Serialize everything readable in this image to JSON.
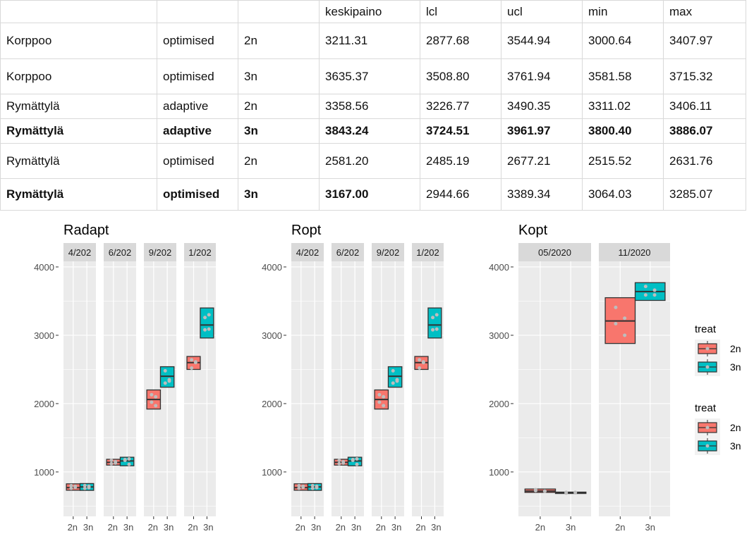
{
  "table": {
    "headers": [
      "",
      "",
      "",
      "keskipaino",
      "lcl",
      "ucl",
      "min",
      "max"
    ],
    "rows": [
      {
        "bold": false,
        "cells": [
          "Korppoo",
          "optimised",
          "2n",
          "3211.31",
          "2877.68",
          "3544.94",
          "3000.64",
          "3407.97"
        ]
      },
      {
        "bold": false,
        "cells": [
          "Korppoo",
          "optimised",
          "3n",
          "3635.37",
          "3508.80",
          "3761.94",
          "3581.58",
          "3715.32"
        ]
      },
      {
        "bold": false,
        "cells": [
          "Rymättylä",
          "adaptive",
          "2n",
          "3358.56",
          "3226.77",
          "3490.35",
          "3311.02",
          "3406.11"
        ]
      },
      {
        "bold": true,
        "cells": [
          "Rymättylä",
          "adaptive",
          "3n",
          "3843.24",
          "3724.51",
          "3961.97",
          "3800.40",
          "3886.07"
        ]
      },
      {
        "bold": false,
        "cells": [
          "Rymättylä",
          "optimised",
          "2n",
          "2581.20",
          "2485.19",
          "2677.21",
          "2515.52",
          "2631.76"
        ]
      },
      {
        "bold": "partial",
        "cells": [
          "Rymättylä",
          "optimised",
          "3n",
          "3167.00",
          "2944.66",
          "3389.34",
          "3064.03",
          "3285.07"
        ]
      }
    ]
  },
  "colors": {
    "2n": "#F8766D",
    "3n": "#00BFC4",
    "panel": "#EBEBEB",
    "strip": "#D9D9D9"
  },
  "chart_data": [
    {
      "type": "box",
      "title": "Radapt",
      "ylim": [
        350,
        4082
      ],
      "yticks": [
        1000,
        2000,
        3000,
        4000
      ],
      "facets": [
        {
          "label": "4/202",
          "boxes": [
            {
              "group": "2n",
              "q1": 732,
              "median": 770,
              "q3": 826,
              "points": [
                760,
                790,
                800,
                775
              ]
            },
            {
              "group": "3n",
              "q1": 730,
              "median": 780,
              "q3": 830,
              "points": [
                800,
                770,
                760,
                790
              ]
            }
          ]
        },
        {
          "label": "6/202",
          "boxes": [
            {
              "group": "2n",
              "q1": 1100,
              "median": 1140,
              "q3": 1185,
              "points": [
                1120,
                1150,
                1170,
                1130
              ]
            },
            {
              "group": "3n",
              "q1": 1090,
              "median": 1160,
              "q3": 1215,
              "points": [
                1180,
                1110,
                1170,
                1190
              ]
            }
          ]
        },
        {
          "label": "9/202",
          "boxes": [
            {
              "group": "2n",
              "q1": 1920,
              "median": 2060,
              "q3": 2200,
              "points": [
                2130,
                2100,
                2020,
                1970
              ]
            },
            {
              "group": "3n",
              "q1": 2240,
              "median": 2400,
              "q3": 2540,
              "points": [
                2480,
                2330,
                2300,
                2350
              ]
            }
          ]
        },
        {
          "label": "1/202",
          "boxes": [
            {
              "group": "2n",
              "q1": 2500,
              "median": 2600,
              "q3": 2690,
              "points": [
                2640,
                2610,
                2520,
                2600
              ]
            },
            {
              "group": "3n",
              "q1": 2960,
              "median": 3150,
              "q3": 3400,
              "points": [
                3260,
                3300,
                3080,
                3090
              ]
            }
          ]
        }
      ]
    },
    {
      "type": "box",
      "title": "Ropt",
      "ylim": [
        350,
        4082
      ],
      "yticks": [
        1000,
        2000,
        3000,
        4000
      ],
      "facets": [
        {
          "label": "4/202",
          "boxes": [
            {
              "group": "2n",
              "q1": 732,
              "median": 770,
              "q3": 826,
              "points": [
                760,
                790,
                800,
                775
              ]
            },
            {
              "group": "3n",
              "q1": 730,
              "median": 780,
              "q3": 830,
              "points": [
                800,
                770,
                760,
                790
              ]
            }
          ]
        },
        {
          "label": "6/202",
          "boxes": [
            {
              "group": "2n",
              "q1": 1100,
              "median": 1140,
              "q3": 1185,
              "points": [
                1120,
                1150,
                1170,
                1130
              ]
            },
            {
              "group": "3n",
              "q1": 1090,
              "median": 1160,
              "q3": 1215,
              "points": [
                1180,
                1110,
                1170,
                1190
              ]
            }
          ]
        },
        {
          "label": "9/202",
          "boxes": [
            {
              "group": "2n",
              "q1": 1920,
              "median": 2060,
              "q3": 2200,
              "points": [
                2130,
                2100,
                2020,
                1970
              ]
            },
            {
              "group": "3n",
              "q1": 2240,
              "median": 2400,
              "q3": 2540,
              "points": [
                2480,
                2330,
                2300,
                2350
              ]
            }
          ]
        },
        {
          "label": "1/202",
          "boxes": [
            {
              "group": "2n",
              "q1": 2500,
              "median": 2600,
              "q3": 2690,
              "points": [
                2640,
                2610,
                2520,
                2600
              ]
            },
            {
              "group": "3n",
              "q1": 2960,
              "median": 3150,
              "q3": 3400,
              "points": [
                3260,
                3300,
                3080,
                3090
              ]
            }
          ]
        }
      ]
    },
    {
      "type": "box",
      "title": "Kopt",
      "ylim": [
        350,
        4082
      ],
      "yticks": [
        1000,
        2000,
        3000,
        4000
      ],
      "facets": [
        {
          "label": "05/2020",
          "boxes": [
            {
              "group": "2n",
              "q1": 700,
              "median": 720,
              "q3": 750,
              "points": [
                740,
                720,
                725,
                715
              ]
            },
            {
              "group": "3n",
              "q1": 690,
              "median": 700,
              "q3": 705,
              "points": [
                700,
                695,
                690,
                700
              ]
            }
          ]
        },
        {
          "label": "11/2020",
          "boxes": [
            {
              "group": "2n",
              "q1": 2880,
              "median": 3210,
              "q3": 3550,
              "points": [
                3408,
                3250,
                3170,
                3000
              ]
            },
            {
              "group": "3n",
              "q1": 3510,
              "median": 3640,
              "q3": 3770,
              "points": [
                3715,
                3660,
                3590,
                3590
              ]
            }
          ]
        }
      ],
      "legends": [
        {
          "title": "treat",
          "items": [
            "2n",
            "3n"
          ]
        },
        {
          "title": "treat",
          "items": [
            "2n",
            "3n"
          ]
        }
      ]
    }
  ]
}
